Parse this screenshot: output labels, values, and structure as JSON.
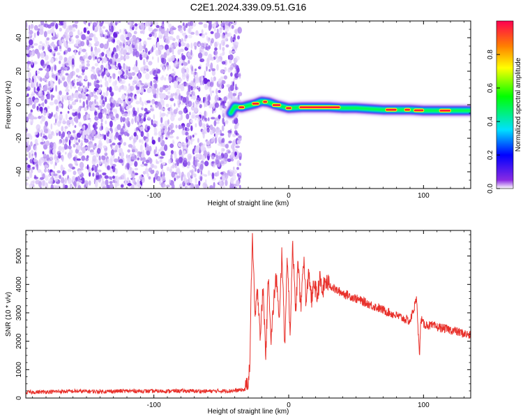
{
  "title": "C2E1.2024.339.09.51.G16",
  "chart_data": [
    {
      "type": "heatmap",
      "xlabel": "Height of straight line (km)",
      "ylabel": "Frequency (Hz)",
      "xlim": [
        -195,
        135
      ],
      "ylim": [
        -50,
        50
      ],
      "x_ticks": [
        -100,
        0,
        100
      ],
      "x_tick_labels": [
        "-100",
        "0",
        "100"
      ],
      "y_ticks": [
        40,
        20,
        0,
        -20,
        -40
      ],
      "y_tick_labels": [
        "40",
        "20",
        "0",
        "-20",
        "-40"
      ],
      "noise_region_x": [
        -195,
        -40
      ],
      "signal_track": {
        "x": [
          -43,
          -40,
          -35,
          -30,
          -25,
          -20,
          -15,
          -10,
          -5,
          0,
          10,
          20,
          30,
          40,
          50,
          60,
          70,
          80,
          90,
          100,
          110,
          120,
          135
        ],
        "frequency": [
          -5,
          -1,
          -1.5,
          -0.5,
          0.5,
          2,
          1.5,
          0,
          -1,
          -2,
          -1.5,
          -1.5,
          -1.5,
          -2,
          -2,
          -2.5,
          -3,
          -3,
          -3,
          -3.5,
          -3.5,
          -3.5,
          -3.5
        ]
      },
      "colorbar": {
        "label": "Normalized spectral amplitude",
        "range": [
          0,
          1
        ],
        "ticks": [
          0.0,
          0.2,
          0.4,
          0.6,
          0.8
        ],
        "tick_labels": [
          "0.0",
          "0.2",
          "0.4",
          "0.6",
          "0.8"
        ]
      },
      "grid": false
    },
    {
      "type": "line",
      "xlabel": "Height of straight line (km)",
      "ylabel": "SNR (10 * v/v)",
      "xlim": [
        -195,
        135
      ],
      "ylim": [
        0,
        5900
      ],
      "x_ticks": [
        -100,
        0,
        100
      ],
      "x_tick_labels": [
        "-100",
        "0",
        "100"
      ],
      "y_ticks": [
        0,
        1000,
        2000,
        3000,
        4000,
        5000
      ],
      "y_tick_labels": [
        "0",
        "1000",
        "2000",
        "3000",
        "4000",
        "5000"
      ],
      "color": "#e8302a",
      "series": [
        {
          "x": [
            -195,
            -180,
            -160,
            -140,
            -120,
            -100,
            -80,
            -60,
            -40,
            -32,
            -29,
            -27,
            -25,
            -23,
            -21,
            -19,
            -17,
            -15,
            -13,
            -11,
            -9,
            -7,
            -5,
            -3,
            -1,
            1,
            3,
            5,
            7,
            9,
            11,
            13,
            15,
            17,
            19,
            21,
            23,
            25,
            27,
            30,
            35,
            40,
            50,
            60,
            70,
            80,
            90,
            95,
            97,
            98,
            100,
            110,
            120,
            135
          ],
          "y": [
            200,
            220,
            240,
            230,
            250,
            240,
            250,
            240,
            260,
            300,
            900,
            5800,
            2800,
            3800,
            2200,
            3900,
            1500,
            4400,
            2000,
            3500,
            4300,
            2500,
            5300,
            1800,
            5100,
            2200,
            5600,
            2900,
            4800,
            3100,
            5000,
            3300,
            4500,
            3400,
            4100,
            3500,
            4200,
            3700,
            4100,
            4000,
            3800,
            3700,
            3500,
            3300,
            3100,
            2900,
            2700,
            3500,
            1400,
            2800,
            2600,
            2500,
            2400,
            2200
          ]
        }
      ],
      "grid": false
    }
  ]
}
